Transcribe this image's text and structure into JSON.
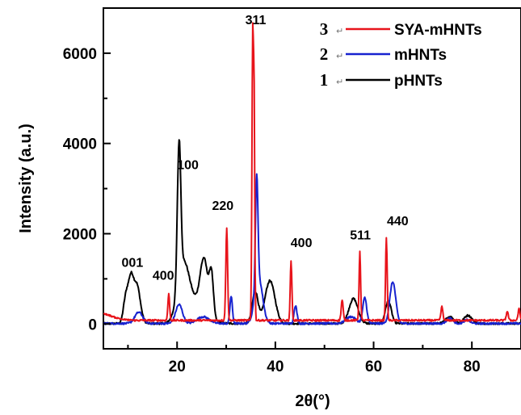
{
  "chart_data": {
    "type": "line",
    "xlabel": "2θ(°)",
    "ylabel": "Intensity (a.u.)",
    "xlim": [
      5,
      90
    ],
    "ylim": [
      -550,
      7000
    ],
    "xticks": [
      20,
      40,
      60,
      80
    ],
    "yticks": [
      0,
      2000,
      4000,
      6000
    ],
    "legend_position": "top-right",
    "series": [
      {
        "name": "SYA-mHNTs",
        "number": "3",
        "mark": "↵",
        "color": "#e8141b",
        "baseline": 80,
        "start": [
          [
            5,
            230
          ],
          [
            6,
            200
          ],
          [
            7.5,
            140
          ],
          [
            9,
            100
          ],
          [
            11,
            80
          ]
        ],
        "peaks": [
          [
            18.3,
            580,
            0.18
          ],
          [
            30.1,
            2060,
            0.18
          ],
          [
            35.4,
            6400,
            0.16
          ],
          [
            35.7,
            4200,
            0.12
          ],
          [
            43.2,
            1320,
            0.16
          ],
          [
            53.6,
            450,
            0.2
          ],
          [
            57.2,
            1510,
            0.16
          ],
          [
            62.6,
            1810,
            0.16
          ],
          [
            73.9,
            300,
            0.2
          ],
          [
            87.2,
            200,
            0.2
          ],
          [
            89.6,
            250,
            0.2
          ]
        ]
      },
      {
        "name": "mHNTs",
        "number": "2",
        "mark": "↵",
        "color": "#1722cf",
        "baseline": 10,
        "start": [],
        "peaks": [
          [
            12.2,
            250,
            0.8
          ],
          [
            20.4,
            420,
            0.7
          ],
          [
            25.3,
            150,
            1.2
          ],
          [
            31.0,
            600,
            0.25
          ],
          [
            36.2,
            2450,
            0.25
          ],
          [
            36.6,
            1000,
            0.8
          ],
          [
            44.1,
            400,
            0.3
          ],
          [
            55.4,
            150,
            1.0
          ],
          [
            58.2,
            570,
            0.4
          ],
          [
            63.9,
            920,
            0.6
          ],
          [
            75.5,
            120,
            0.6
          ],
          [
            79.0,
            80,
            0.6
          ]
        ]
      },
      {
        "name": "pHNTs",
        "number": "1",
        "mark": "↵",
        "color": "#000000",
        "baseline": 10,
        "start": [],
        "peaks": [
          [
            9.6,
            600,
            0.5
          ],
          [
            10.6,
            850,
            0.5
          ],
          [
            11.8,
            850,
            0.7
          ],
          [
            20.4,
            3100,
            0.35
          ],
          [
            21.3,
            1200,
            1.2
          ],
          [
            25.5,
            1150,
            0.8
          ],
          [
            27.0,
            900,
            0.4
          ],
          [
            24.0,
            400,
            2.0
          ],
          [
            35.9,
            700,
            0.6
          ],
          [
            38.9,
            950,
            1.0
          ],
          [
            55.9,
            550,
            0.9
          ],
          [
            63.0,
            500,
            0.6
          ],
          [
            75.5,
            150,
            0.8
          ],
          [
            79.2,
            180,
            0.8
          ]
        ]
      }
    ],
    "annotations": [
      {
        "text": "001",
        "x": 10.9,
        "y": 1270
      },
      {
        "text": "400",
        "x": 17.2,
        "y": 980
      },
      {
        "text": "100",
        "x": 22.2,
        "y": 3430
      },
      {
        "text": "220",
        "x": 29.3,
        "y": 2530
      },
      {
        "text": "311",
        "x": 36.0,
        "y": 6640
      },
      {
        "text": "400",
        "x": 45.3,
        "y": 1700
      },
      {
        "text": "511",
        "x": 57.3,
        "y": 1870
      },
      {
        "text": "440",
        "x": 64.9,
        "y": 2190
      }
    ]
  }
}
